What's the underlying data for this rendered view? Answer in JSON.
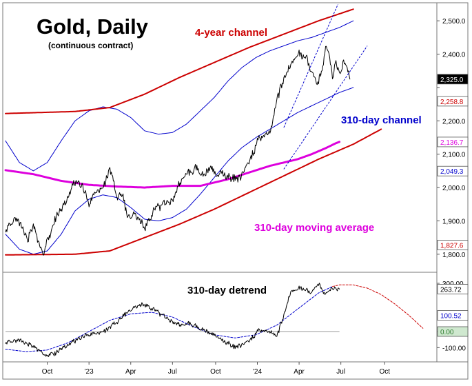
{
  "chart_data": [
    {
      "type": "line",
      "title": "Gold, Daily",
      "subtitle": "(continuous contract)",
      "ylim": [
        1750,
        2550
      ],
      "y_ticks": [
        {
          "value": 2500,
          "label": "2,500.0"
        },
        {
          "value": 2400,
          "label": "2,400.0"
        },
        {
          "value": 2300,
          "label": ""
        },
        {
          "value": 2200,
          "label": "2,200.0"
        },
        {
          "value": 2100,
          "label": "2,100.0"
        },
        {
          "value": 2000,
          "label": "2,000.0"
        },
        {
          "value": 1900,
          "label": "1,900.0"
        },
        {
          "value": 1800,
          "label": "1,800.0"
        }
      ],
      "price_tags": [
        {
          "value": 2325.0,
          "label": "2,325.0",
          "color": "#000000",
          "text_color": "#ffffff"
        },
        {
          "value": 2258.8,
          "label": "2,258.8",
          "color": "#ffffff",
          "text_color": "#cc0000"
        },
        {
          "value": 2136.7,
          "label": "2,136.7",
          "color": "#ffffff",
          "text_color": "#dd00dd"
        },
        {
          "value": 2049.3,
          "label": "2,049.3",
          "color": "#ffffff",
          "text_color": "#0000cc"
        },
        {
          "value": 1827.6,
          "label": "1,827.6",
          "color": "#ffffff",
          "text_color": "#cc0000"
        }
      ],
      "annotations": [
        {
          "text": "4-year channel",
          "color": "#cc0000"
        },
        {
          "text": "310-day channel",
          "color": "#0000cc"
        },
        {
          "text": "310-day moving average",
          "color": "#dd00dd"
        }
      ],
      "series": [
        {
          "name": "Gold price (close)",
          "color": "#000000",
          "days": [
            0,
            15,
            25,
            32,
            40,
            50,
            55,
            60,
            65,
            70,
            75,
            80,
            90,
            100,
            110,
            120,
            130,
            140,
            150,
            160,
            168,
            175,
            185,
            200,
            215,
            230,
            240,
            250,
            258,
            265,
            275,
            285,
            295,
            300,
            305,
            310,
            320,
            335,
            350,
            365,
            375,
            382,
            390,
            400,
            410,
            420,
            432,
            440,
            448,
            455,
            460,
            465,
            470,
            475,
            480,
            485,
            490,
            495
          ],
          "values": [
            1870,
            1910,
            1880,
            1845,
            1890,
            1820,
            1805,
            1850,
            1850,
            1900,
            1920,
            1930,
            1975,
            2020,
            2010,
            1950,
            1990,
            2000,
            2060,
            1975,
            1980,
            1915,
            1920,
            1880,
            1935,
            1955,
            1965,
            2010,
            2040,
            2045,
            2060,
            2035,
            2065,
            2045,
            2035,
            2050,
            2030,
            2025,
            2075,
            2150,
            2160,
            2175,
            2265,
            2325,
            2370,
            2400,
            2390,
            2345,
            2310,
            2355,
            2420,
            2400,
            2330,
            2380,
            2340,
            2375,
            2360,
            2325
          ]
        },
        {
          "name": "310-day moving average",
          "color": "#dd00dd",
          "days": [
            0,
            40,
            80,
            120,
            160,
            200,
            240,
            280,
            320,
            350,
            380,
            400,
            420,
            440,
            460,
            475,
            480
          ],
          "values": [
            2052,
            2040,
            2020,
            2008,
            2003,
            2000,
            2005,
            2005,
            2025,
            2045,
            2065,
            2075,
            2085,
            2100,
            2118,
            2133,
            2137
          ]
        },
        {
          "name": "310-day channel (upper)",
          "color": "#0000cc",
          "days": [
            0,
            20,
            40,
            60,
            80,
            100,
            120,
            140,
            160,
            180,
            200,
            220,
            240,
            260,
            280,
            300,
            320,
            340,
            360,
            380,
            400,
            420,
            440,
            460,
            480,
            500
          ],
          "values": [
            2140,
            2075,
            2050,
            2075,
            2140,
            2200,
            2230,
            2242,
            2235,
            2210,
            2170,
            2160,
            2165,
            2190,
            2230,
            2270,
            2320,
            2360,
            2390,
            2410,
            2425,
            2440,
            2450,
            2465,
            2480,
            2500
          ]
        },
        {
          "name": "310-day channel (lower)",
          "color": "#0000cc",
          "days": [
            0,
            20,
            40,
            60,
            80,
            100,
            120,
            140,
            160,
            180,
            200,
            220,
            240,
            260,
            280,
            300,
            320,
            340,
            360,
            380,
            400,
            420,
            440,
            460,
            480,
            500
          ],
          "values": [
            1860,
            1815,
            1800,
            1810,
            1860,
            1930,
            1965,
            1978,
            1970,
            1940,
            1905,
            1900,
            1910,
            1935,
            1980,
            2030,
            2080,
            2120,
            2150,
            2175,
            2200,
            2225,
            2245,
            2265,
            2285,
            2300
          ]
        },
        {
          "name": "4-year channel (upper)",
          "color": "#cc0000",
          "days": [
            0,
            100,
            150,
            200,
            250,
            300,
            350,
            400,
            450,
            500
          ],
          "values": [
            2222,
            2228,
            2240,
            2280,
            2330,
            2375,
            2420,
            2460,
            2500,
            2535
          ]
        },
        {
          "name": "4-year channel (lower)",
          "color": "#cc0000",
          "days": [
            0,
            100,
            150,
            200,
            250,
            300,
            350,
            400,
            450,
            500,
            540
          ],
          "values": [
            1798,
            1800,
            1810,
            1850,
            1890,
            1935,
            1985,
            2035,
            2085,
            2130,
            2175
          ]
        }
      ],
      "legend": "none",
      "grid": false
    },
    {
      "type": "line",
      "title": "310-day detrend",
      "ylim": [
        -180,
        360
      ],
      "y_ticks": [
        {
          "value": 300,
          "label": "300.00"
        },
        {
          "value": 0,
          "label": ""
        },
        {
          "value": -100,
          "label": "-100.00"
        }
      ],
      "value_tags": [
        {
          "value": 263.72,
          "label": "263.72",
          "color": "#ffffff",
          "text_color": "#000000"
        },
        {
          "value": 100.52,
          "label": "100.52",
          "color": "#ffffff",
          "text_color": "#0000cc"
        },
        {
          "value": 0.0,
          "label": "0.00",
          "color": "#cfe8cf",
          "text_color": "#2a7a2a"
        }
      ],
      "x_ticks": [
        "Oct",
        "'23",
        "Apr",
        "Jul",
        "Oct",
        "'24",
        "Apr",
        "Jul",
        "Oct"
      ],
      "series": [
        {
          "name": "310-day detrend",
          "color": "#000000",
          "days": [
            0,
            20,
            40,
            60,
            70,
            90,
            110,
            140,
            160,
            180,
            200,
            230,
            250,
            265,
            280,
            300,
            330,
            350,
            365,
            380,
            390,
            400,
            410,
            425,
            440,
            450,
            460,
            470,
            480
          ],
          "values": [
            -70,
            -50,
            -90,
            -150,
            -140,
            -80,
            -30,
            0,
            60,
            140,
            170,
            90,
            40,
            50,
            20,
            -20,
            -100,
            -60,
            10,
            0,
            -30,
            100,
            250,
            270,
            240,
            300,
            230,
            270,
            264
          ]
        },
        {
          "name": "detrend cycle",
          "color": "#0000cc",
          "days": [
            0,
            30,
            60,
            90,
            120,
            150,
            180,
            210,
            240,
            270,
            300,
            330,
            360,
            390,
            420,
            450,
            470
          ],
          "values": [
            -110,
            -125,
            -115,
            -70,
            0,
            70,
            110,
            120,
            90,
            30,
            -20,
            -40,
            -20,
            40,
            140,
            240,
            280
          ]
        },
        {
          "name": "detrend cycle (projection)",
          "color": "#cc0000",
          "days": [
            470,
            480,
            500,
            520,
            540,
            560,
            580,
            600
          ],
          "values": [
            280,
            290,
            290,
            270,
            230,
            170,
            100,
            20
          ]
        }
      ],
      "legend": "none",
      "grid": false
    }
  ]
}
